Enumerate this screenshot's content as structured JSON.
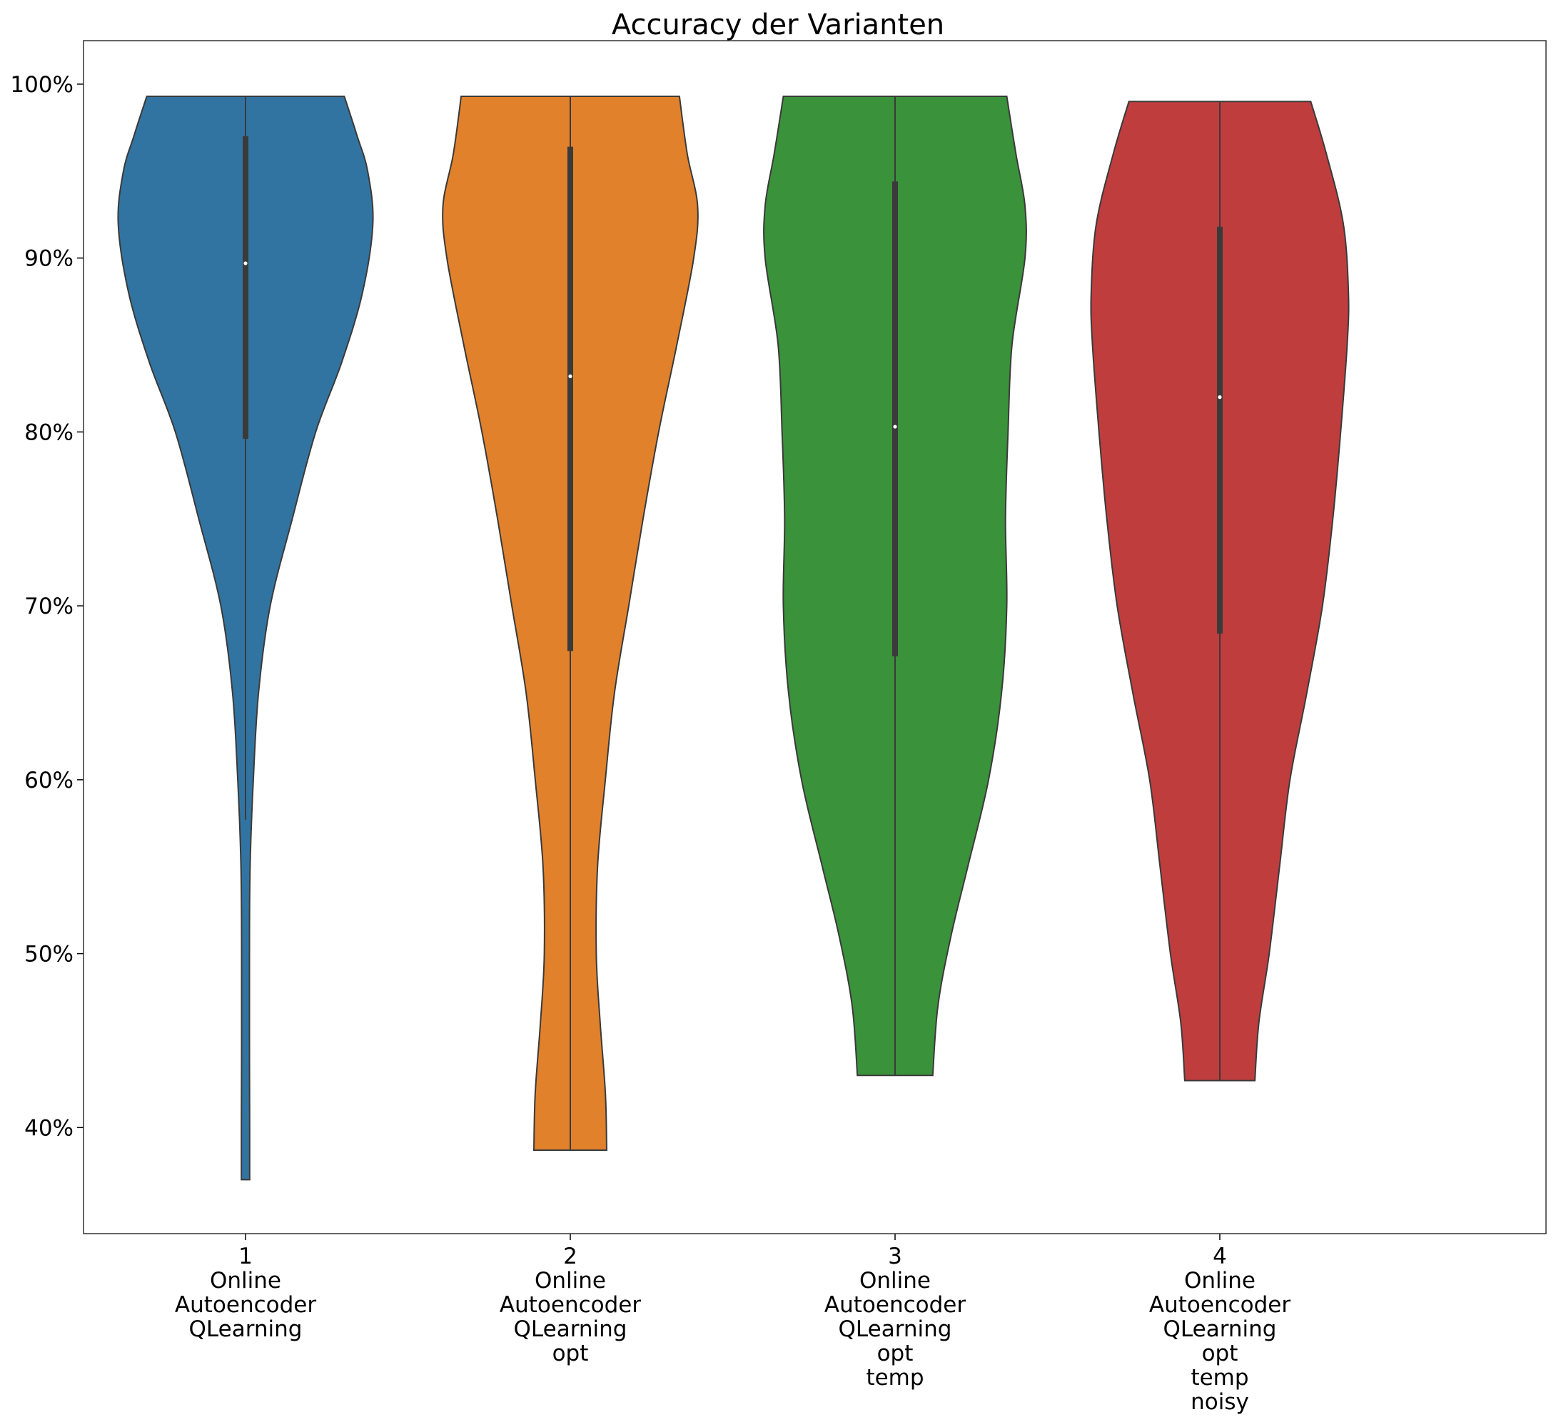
{
  "chart_data": {
    "type": "violin",
    "title": "Accuracy der Varianten",
    "xlabel": "",
    "ylabel": "",
    "ylim": [
      33.9,
      102.5
    ],
    "yticks": [
      40,
      50,
      60,
      70,
      80,
      90,
      100
    ],
    "ytick_suffix": "%",
    "grid": false,
    "legend": "none",
    "categories": [
      {
        "tick": "1",
        "label_lines": [
          "Online",
          "Autoencoder",
          "QLearning"
        ],
        "color": "#3274a1",
        "min": 37.0,
        "max": 99.3,
        "q1": 79.6,
        "median": 89.7,
        "q3": 97.0,
        "whisker_low": 57.7,
        "whisker_high": 99.3,
        "density": [
          [
            37.0,
            0.032
          ],
          [
            40.0,
            0.032
          ],
          [
            45.0,
            0.03
          ],
          [
            50.0,
            0.03
          ],
          [
            55.0,
            0.035
          ],
          [
            60.0,
            0.06
          ],
          [
            65.0,
            0.1
          ],
          [
            70.0,
            0.19
          ],
          [
            75.0,
            0.36
          ],
          [
            80.0,
            0.54
          ],
          [
            84.0,
            0.74
          ],
          [
            88.0,
            0.9
          ],
          [
            92.0,
            0.98
          ],
          [
            95.0,
            0.94
          ],
          [
            97.0,
            0.86
          ],
          [
            99.3,
            0.76
          ]
        ]
      },
      {
        "tick": "2",
        "label_lines": [
          "Online",
          "Autoencoder",
          "QLearning",
          "opt"
        ],
        "color": "#e1812c",
        "min": 38.7,
        "max": 99.3,
        "q1": 67.4,
        "median": 83.2,
        "q3": 96.4,
        "whisker_low": 38.7,
        "whisker_high": 99.3,
        "density": [
          [
            38.7,
            0.28
          ],
          [
            42.0,
            0.27
          ],
          [
            46.0,
            0.23
          ],
          [
            50.0,
            0.2
          ],
          [
            55.0,
            0.21
          ],
          [
            60.0,
            0.27
          ],
          [
            65.0,
            0.34
          ],
          [
            70.0,
            0.45
          ],
          [
            75.0,
            0.56
          ],
          [
            80.0,
            0.68
          ],
          [
            85.0,
            0.82
          ],
          [
            90.0,
            0.95
          ],
          [
            93.0,
            0.98
          ],
          [
            96.0,
            0.9
          ],
          [
            99.3,
            0.84
          ]
        ]
      },
      {
        "tick": "3",
        "label_lines": [
          "Online",
          "Autoencoder",
          "QLearning",
          "opt",
          "temp"
        ],
        "color": "#3a923a",
        "min": 43.0,
        "max": 99.3,
        "q1": 67.1,
        "median": 80.3,
        "q3": 94.4,
        "whisker_low": 43.0,
        "whisker_high": 99.3,
        "density": [
          [
            43.0,
            0.29
          ],
          [
            47.0,
            0.33
          ],
          [
            51.0,
            0.43
          ],
          [
            55.0,
            0.56
          ],
          [
            60.0,
            0.72
          ],
          [
            65.0,
            0.82
          ],
          [
            70.0,
            0.86
          ],
          [
            75.0,
            0.85
          ],
          [
            80.0,
            0.87
          ],
          [
            85.0,
            0.9
          ],
          [
            90.0,
            1.0
          ],
          [
            93.0,
            1.0
          ],
          [
            96.0,
            0.93
          ],
          [
            99.3,
            0.86
          ]
        ]
      },
      {
        "tick": "4",
        "label_lines": [
          "Online",
          "Autoencoder",
          "QLearning",
          "opt",
          "temp",
          "noisy"
        ],
        "color": "#c03d3e",
        "min": 42.7,
        "max": 99.0,
        "q1": 68.4,
        "median": 82.0,
        "q3": 91.8,
        "whisker_low": 42.7,
        "whisker_high": 99.0,
        "density": [
          [
            42.7,
            0.27
          ],
          [
            46.0,
            0.3
          ],
          [
            50.0,
            0.38
          ],
          [
            55.0,
            0.46
          ],
          [
            60.0,
            0.54
          ],
          [
            65.0,
            0.67
          ],
          [
            70.0,
            0.79
          ],
          [
            75.0,
            0.87
          ],
          [
            80.0,
            0.93
          ],
          [
            85.0,
            0.98
          ],
          [
            88.0,
            0.99
          ],
          [
            92.0,
            0.95
          ],
          [
            96.0,
            0.82
          ],
          [
            99.0,
            0.7
          ]
        ]
      }
    ]
  }
}
